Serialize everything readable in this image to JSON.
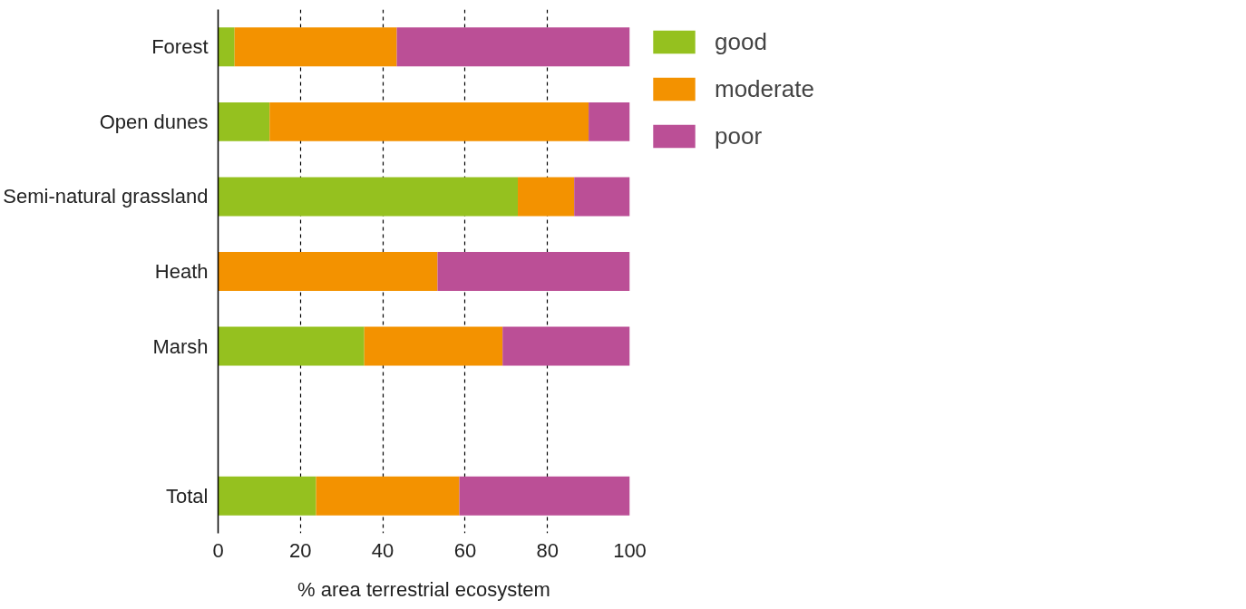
{
  "chart_data": {
    "type": "bar",
    "orientation": "horizontal",
    "stacked": true,
    "xlabel": "% area terrestrial ecosystem",
    "categories": [
      "Forest",
      "Open dunes",
      "Semi-natural grassland",
      "Heath",
      "Marsh",
      null,
      "Total"
    ],
    "series": [
      {
        "name": "good",
        "color": "#95c11f",
        "values": [
          4.0,
          12.5,
          72.8,
          0,
          35.5,
          null,
          23.8
        ]
      },
      {
        "name": "moderate",
        "color": "#f39200",
        "values": [
          39.4,
          77.5,
          13.7,
          53.3,
          33.6,
          null,
          34.8
        ]
      },
      {
        "name": "poor",
        "color": "#bb4f96",
        "values": [
          56.6,
          10.0,
          13.5,
          46.7,
          30.9,
          null,
          41.4
        ]
      }
    ],
    "xlim": [
      0,
      100
    ],
    "xticks": [
      0,
      20,
      40,
      60,
      80,
      100
    ],
    "grid": "x",
    "legend": "top right"
  }
}
